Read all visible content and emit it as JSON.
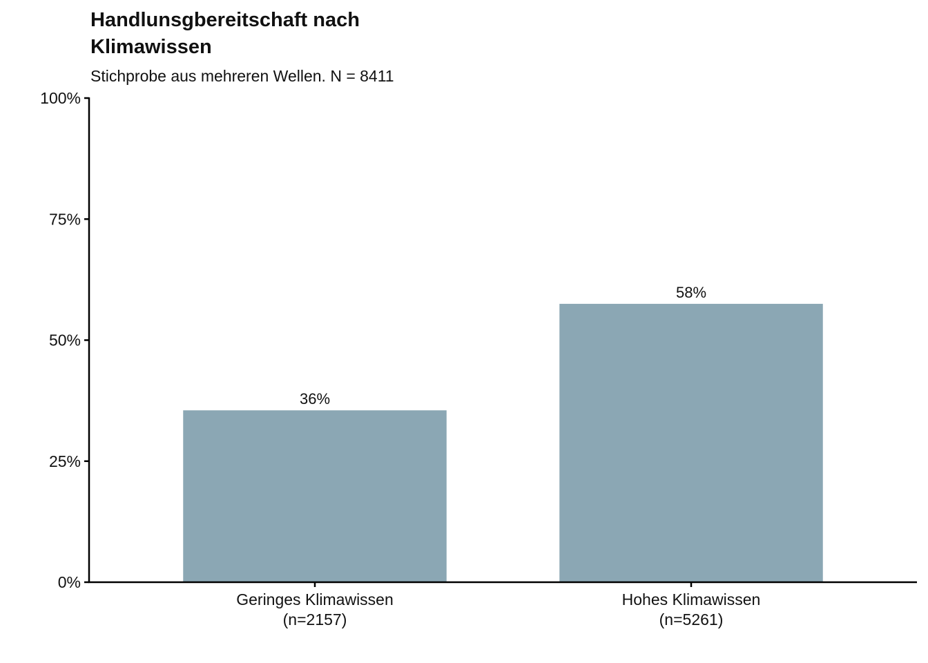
{
  "chart_data": {
    "type": "bar",
    "title": "Handlunsgbereitschaft nach Klimawissen",
    "subtitle": "Stichprobe aus mehreren Wellen. N = 8411",
    "xlabel": "",
    "ylabel": "",
    "categories": [
      [
        "Geringes Klimawissen",
        "(n=2157)"
      ],
      [
        "Hohes Klimawissen",
        "(n=5261)"
      ]
    ],
    "values": [
      0.355,
      0.575
    ],
    "data_labels": [
      "36%",
      "58%"
    ],
    "ylim": [
      0,
      1
    ],
    "yticks": [
      0,
      0.25,
      0.5,
      0.75,
      1.0
    ],
    "ytick_labels": [
      "0%",
      "25%",
      "50%",
      "75%",
      "100%"
    ],
    "grid": false,
    "legend": "none",
    "bar_color": "#8ba7b4",
    "axis_color": "#000000"
  }
}
